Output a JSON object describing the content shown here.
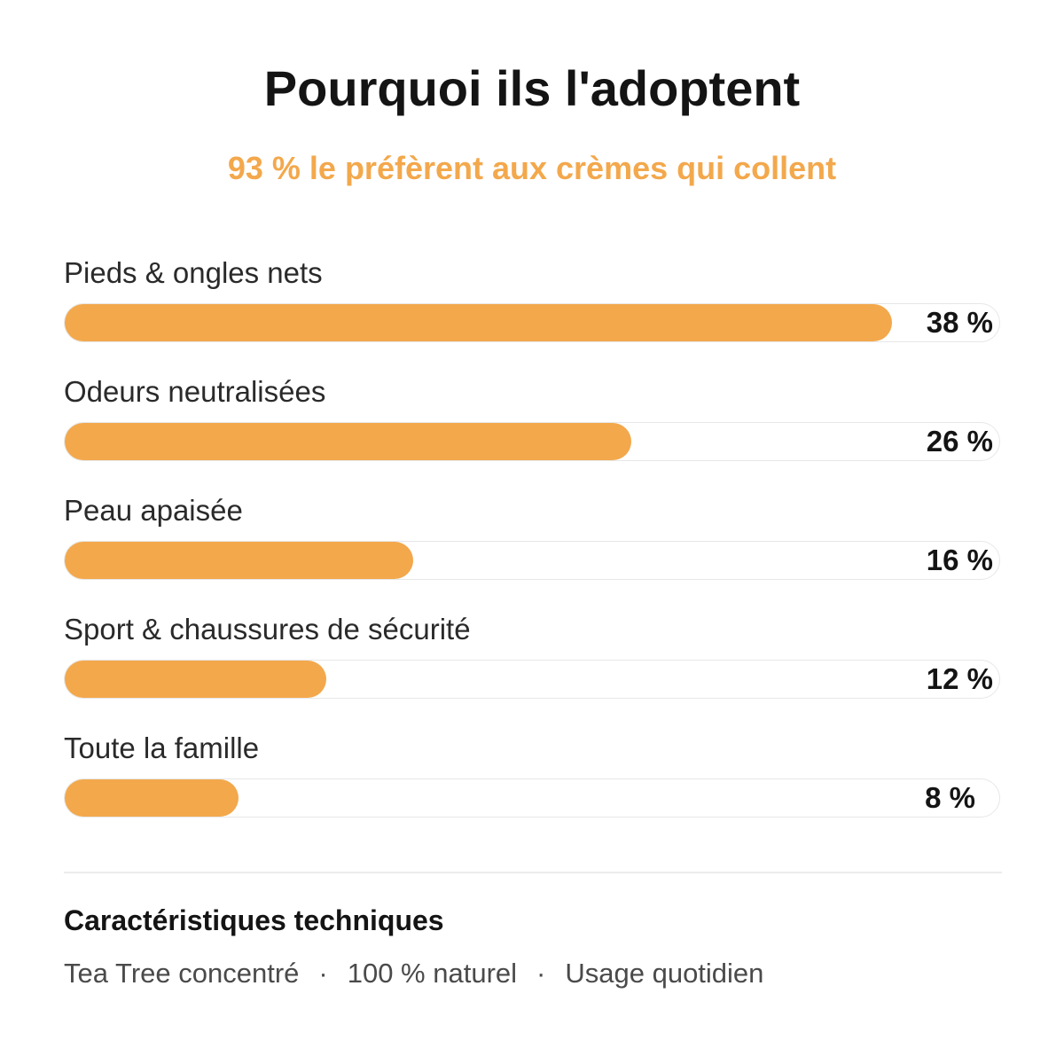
{
  "chart_data": {
    "type": "bar",
    "orientation": "horizontal",
    "title": "Pourquoi ils l'adoptent",
    "subtitle": "93 % le préfèrent aux crèmes qui collent",
    "categories": [
      "Pieds & ongles nets",
      "Odeurs neutralisées",
      "Peau apaisée",
      "Sport & chaussures de sécurité",
      "Toute la famille"
    ],
    "values": [
      38,
      26,
      16,
      12,
      8
    ],
    "value_labels": [
      "38 %",
      "26 %",
      "16 %",
      "12 %",
      "8 %"
    ],
    "xlim": [
      0,
      43
    ],
    "unit": "%",
    "grid": false,
    "legend": "none"
  },
  "footer": {
    "specs_title": "Caractéristiques techniques",
    "specs": [
      "Tea Tree concentré",
      "100 % naturel",
      "Usage quotidien"
    ],
    "separator": "·"
  },
  "colors": {
    "accent": "#f3a84c",
    "track": "#ffffff",
    "track_border": "#e7e7e7",
    "text": "#141414"
  }
}
